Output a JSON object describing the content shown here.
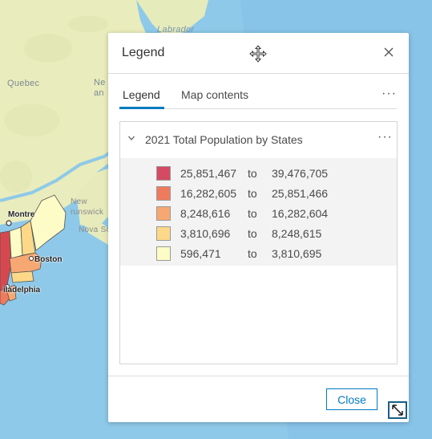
{
  "map": {
    "labels": {
      "labrador": "Labrador",
      "quebec": "Quebec",
      "new_brunswick_partial": "New\nand",
      "new_brunswick": "New\nrunswick",
      "nova_scotia": "Nova Sc",
      "montreal": "Montre",
      "boston": "Boston",
      "philadelphia": "iladelphia"
    }
  },
  "panel": {
    "title": "Legend",
    "tabs": [
      {
        "label": "Legend",
        "active": true
      },
      {
        "label": "Map contents",
        "active": false
      }
    ],
    "more_label": "···",
    "layer": {
      "title": "2021 Total Population by States",
      "classes": [
        {
          "min": "25,851,467",
          "to": "to",
          "max": "39,476,705",
          "color": "#d44a62"
        },
        {
          "min": "16,282,605",
          "to": "to",
          "max": "25,851,466",
          "color": "#ef7b5f"
        },
        {
          "min": "8,248,616",
          "to": "to",
          "max": "16,282,604",
          "color": "#f7a872"
        },
        {
          "min": "3,810,696",
          "to": "to",
          "max": "8,248,615",
          "color": "#fcd888"
        },
        {
          "min": "596,471",
          "to": "to",
          "max": "3,810,695",
          "color": "#fdfcc6"
        }
      ]
    },
    "close_label": "Close"
  },
  "colors": {
    "accent": "#007ac2",
    "water": "#8cc8e8",
    "land": "#eef0c8"
  }
}
